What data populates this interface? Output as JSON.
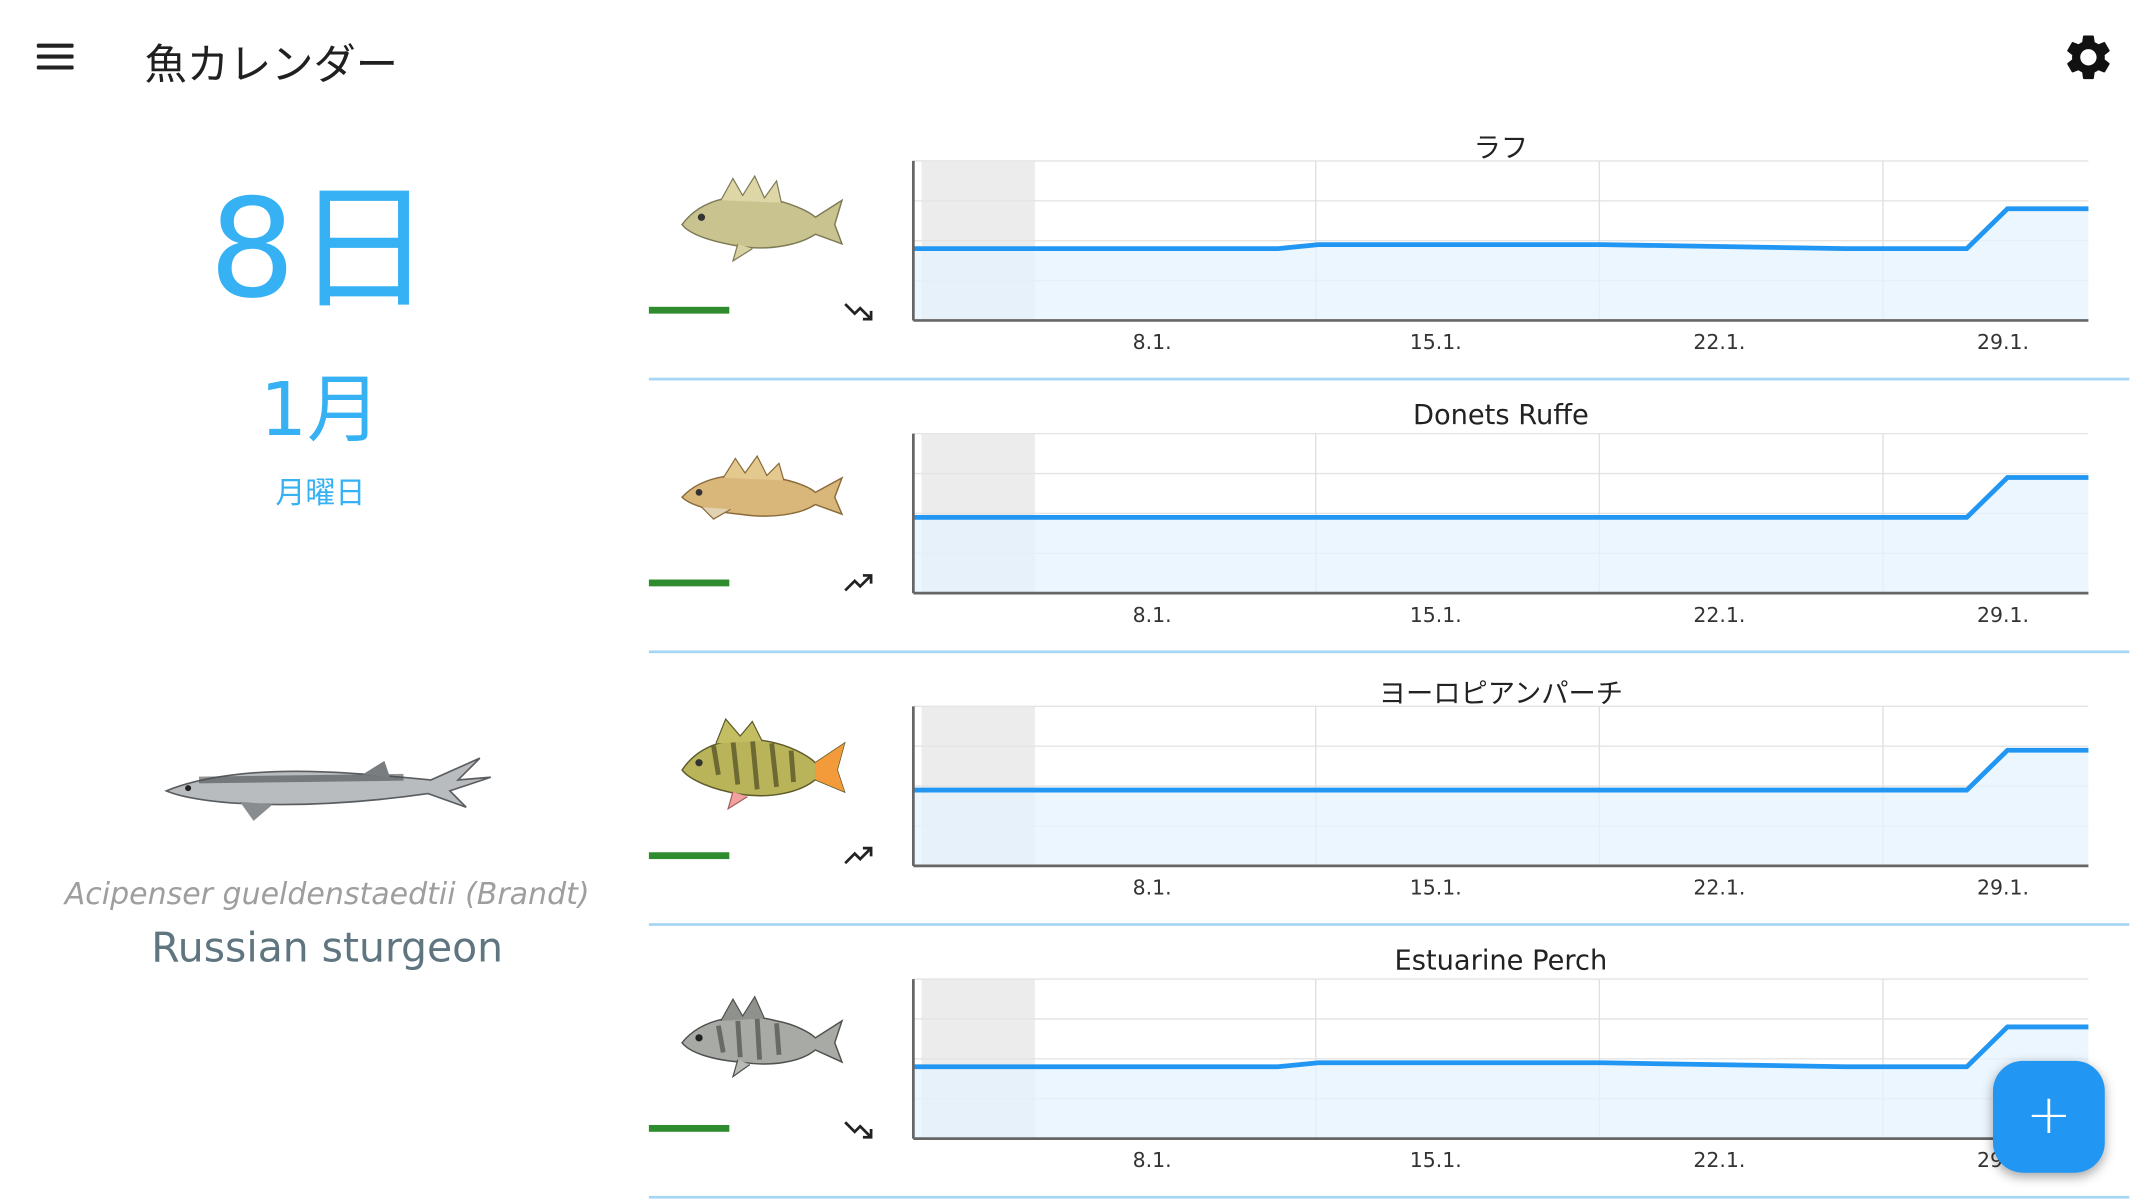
{
  "app": {
    "title": "魚カレンダー"
  },
  "icons": {
    "menu": "menu-icon",
    "settings": "gear-icon",
    "fab": "plus-icon"
  },
  "colors": {
    "accent": "#36b1f3",
    "line": "#2196f3",
    "fill": "#e6f3fd",
    "level": "#2e8b2e",
    "fab": "#2196f3"
  },
  "today": {
    "day": "8日",
    "month": "1月",
    "weekday": "月曜日"
  },
  "featured": {
    "scientific_name": "Acipenser gueldenstaedtii (Brandt)",
    "common_name": "Russian sturgeon"
  },
  "fab": {
    "label": "+"
  },
  "fish_list": [
    {
      "name": "ラフ",
      "trend": "down",
      "chart_data": {
        "type": "area",
        "x_ticks": [
          "8.1.",
          "15.1.",
          "22.1.",
          "29.1."
        ],
        "x_range": [
          5,
          34
        ],
        "y_range": [
          0,
          4
        ],
        "highlight_range": [
          5,
          8
        ],
        "points": [
          [
            5,
            1.8
          ],
          [
            11,
            1.8
          ],
          [
            14,
            1.8
          ],
          [
            15,
            1.9
          ],
          [
            22,
            1.9
          ],
          [
            28,
            1.8
          ],
          [
            31,
            1.8
          ],
          [
            32,
            2.8
          ],
          [
            34,
            2.8
          ]
        ]
      }
    },
    {
      "name": "Donets Ruffe",
      "trend": "up",
      "chart_data": {
        "type": "area",
        "x_ticks": [
          "8.1.",
          "15.1.",
          "22.1.",
          "29.1."
        ],
        "x_range": [
          5,
          34
        ],
        "y_range": [
          0,
          4
        ],
        "highlight_range": [
          5,
          8
        ],
        "points": [
          [
            5,
            1.9
          ],
          [
            31,
            1.9
          ],
          [
            32,
            2.9
          ],
          [
            34,
            2.9
          ]
        ]
      }
    },
    {
      "name": "ヨーロピアンパーチ",
      "trend": "up",
      "chart_data": {
        "type": "area",
        "x_ticks": [
          "8.1.",
          "15.1.",
          "22.1.",
          "29.1."
        ],
        "x_range": [
          5,
          34
        ],
        "y_range": [
          0,
          4
        ],
        "highlight_range": [
          5,
          8
        ],
        "points": [
          [
            5,
            1.9
          ],
          [
            31,
            1.9
          ],
          [
            32,
            2.9
          ],
          [
            34,
            2.9
          ]
        ]
      }
    },
    {
      "name": "Estuarine Perch",
      "trend": "down",
      "chart_data": {
        "type": "area",
        "x_ticks": [
          "8.1.",
          "15.1.",
          "22.1.",
          "29.1."
        ],
        "x_range": [
          5,
          34
        ],
        "y_range": [
          0,
          4
        ],
        "highlight_range": [
          5,
          8
        ],
        "points": [
          [
            5,
            1.8
          ],
          [
            11,
            1.8
          ],
          [
            14,
            1.8
          ],
          [
            15,
            1.9
          ],
          [
            22,
            1.9
          ],
          [
            28,
            1.8
          ],
          [
            31,
            1.8
          ],
          [
            32,
            2.8
          ],
          [
            34,
            2.8
          ]
        ]
      }
    }
  ]
}
